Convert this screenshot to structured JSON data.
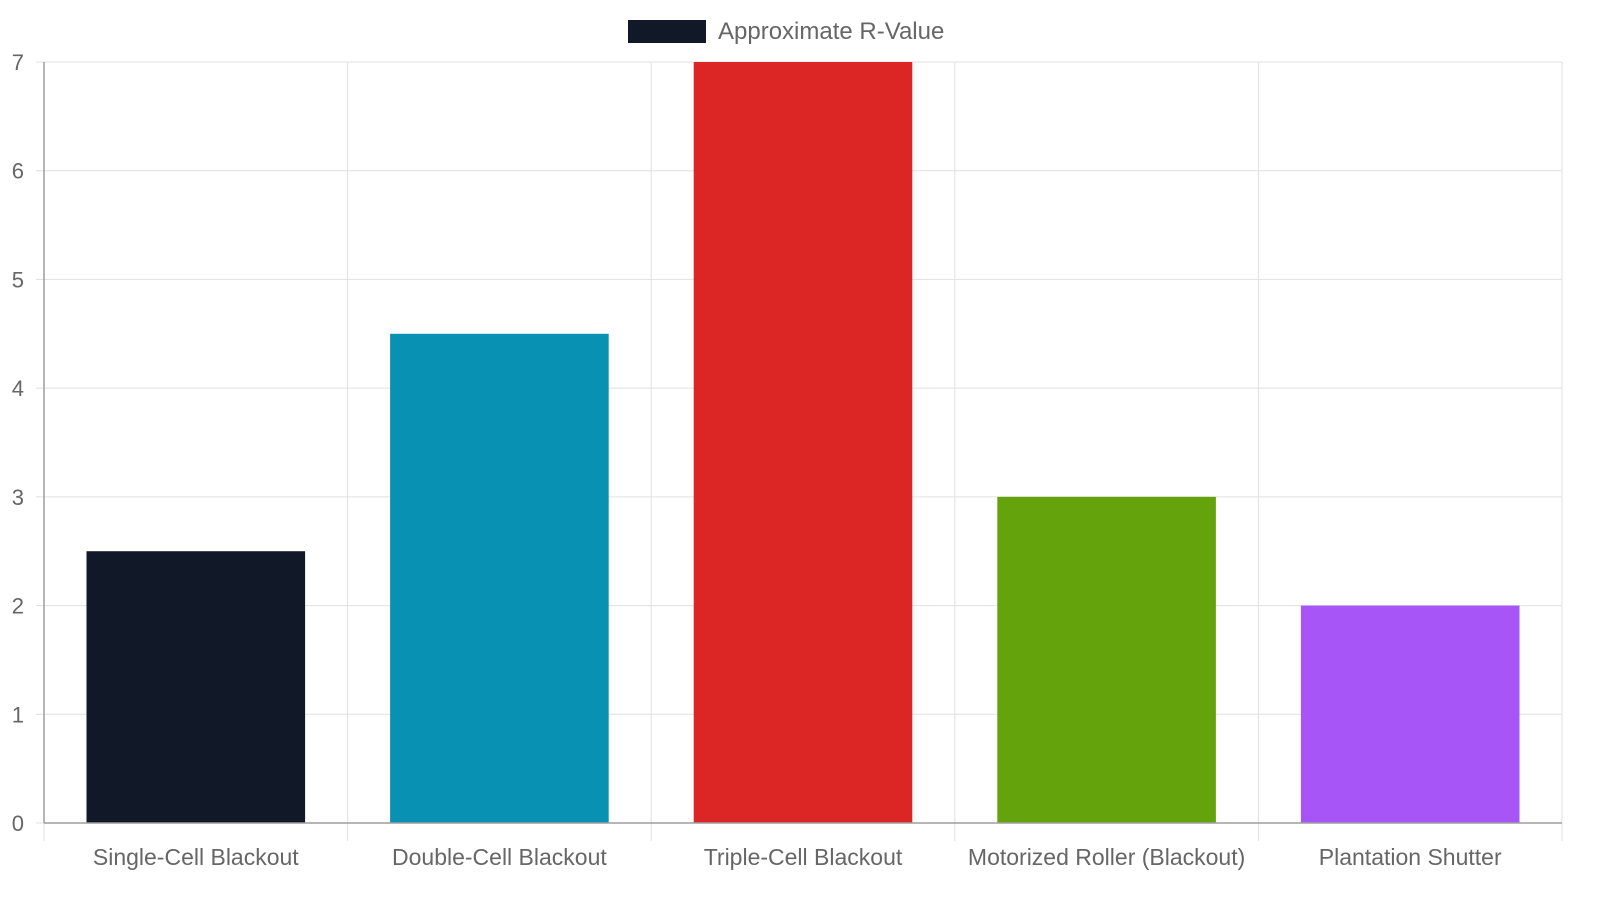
{
  "chart_data": {
    "type": "bar",
    "title": "",
    "xlabel": "",
    "ylabel": "",
    "categories": [
      "Single-Cell Blackout",
      "Double-Cell Blackout",
      "Triple-Cell Blackout",
      "Motorized Roller (Blackout)",
      "Plantation Shutter"
    ],
    "series": [
      {
        "name": "Approximate R-Value",
        "values": [
          2.5,
          4.5,
          7,
          3,
          2
        ]
      }
    ],
    "bar_colors": [
      "#111827",
      "#0891b2",
      "#dc2626",
      "#65a30d",
      "#a855f7"
    ],
    "legend_color": "#111827",
    "ylim": [
      0,
      7
    ],
    "yticks": [
      0,
      1,
      2,
      3,
      4,
      5,
      6,
      7
    ],
    "grid": true,
    "legend_position": "top-center",
    "colors": {
      "grid": "#e0e0e0",
      "axis": "#9e9e9e",
      "tick_text": "#666666"
    }
  }
}
